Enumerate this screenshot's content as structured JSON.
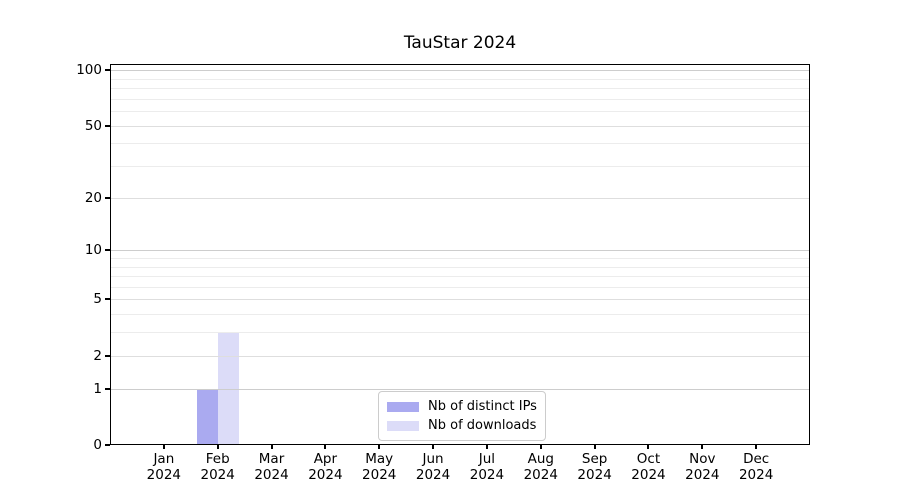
{
  "title": "TauStar 2024",
  "chart_data": {
    "type": "bar",
    "title": "TauStar 2024",
    "categories": [
      "Jan",
      "Feb",
      "Mar",
      "Apr",
      "May",
      "Jun",
      "Jul",
      "Aug",
      "Sep",
      "Oct",
      "Nov",
      "Dec"
    ],
    "category_year": "2024",
    "series": [
      {
        "name": "Nb of distinct IPs",
        "color": "#aaaaf0",
        "values": [
          0,
          1,
          0,
          0,
          0,
          0,
          0,
          0,
          0,
          0,
          0,
          0
        ]
      },
      {
        "name": "Nb of downloads",
        "color": "#dcdcf8",
        "values": [
          0,
          3,
          0,
          0,
          0,
          0,
          0,
          0,
          0,
          0,
          0,
          0
        ]
      }
    ],
    "xlabel": "",
    "ylabel": "",
    "y_scale": "log1p",
    "ylim": [
      0,
      108
    ],
    "y_major_ticks": [
      0,
      1,
      2,
      5,
      10,
      20,
      50,
      100
    ],
    "y_power_gridlines": [
      1,
      10,
      100
    ],
    "y_minor_gridlines": [
      3,
      4,
      6,
      7,
      8,
      9,
      30,
      40,
      60,
      70,
      80,
      90
    ],
    "grid": "horizontal",
    "legend_position": "lower center inside"
  },
  "colors": {
    "background": "#ffffff",
    "axis": "#000000",
    "power_grid": "#cdcdcd",
    "labeled_grid": "#dedede",
    "minor_grid": "#ececec",
    "legend_border": "#cccccc",
    "bar_distinct_ips": "#aaaaf0",
    "bar_downloads": "#dcdcf8"
  }
}
